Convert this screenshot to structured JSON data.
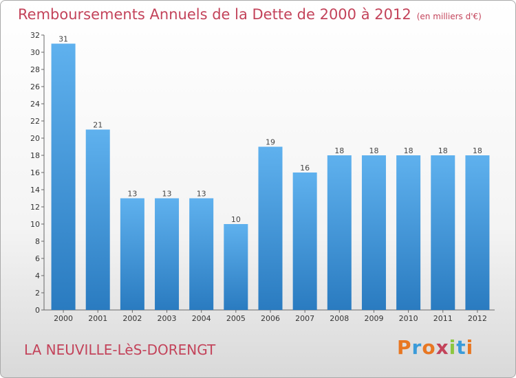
{
  "title": "Remboursements Annuels de la Dette de 2000 à 2012",
  "unit": "(en milliers d'€)",
  "place": "LA NEUVILLE-LèS-DORENGT",
  "logo": {
    "text": "Proxiti",
    "colors": [
      "#e87722",
      "#3a9bd9",
      "#e87722",
      "#c3435a",
      "#8cc63f",
      "#3a9bd9",
      "#e87722"
    ]
  },
  "chart_data": {
    "type": "bar",
    "categories": [
      "2000",
      "2001",
      "2002",
      "2003",
      "2004",
      "2005",
      "2006",
      "2007",
      "2008",
      "2009",
      "2010",
      "2011",
      "2012"
    ],
    "values": [
      31,
      21,
      13,
      13,
      13,
      10,
      19,
      16,
      18,
      18,
      18,
      18,
      18
    ],
    "ylim": [
      0,
      32
    ],
    "yticks": [
      0,
      2,
      4,
      6,
      8,
      10,
      12,
      14,
      16,
      18,
      20,
      22,
      24,
      26,
      28,
      30,
      32
    ],
    "grid": false,
    "bar_color": "#4a9fe0"
  }
}
